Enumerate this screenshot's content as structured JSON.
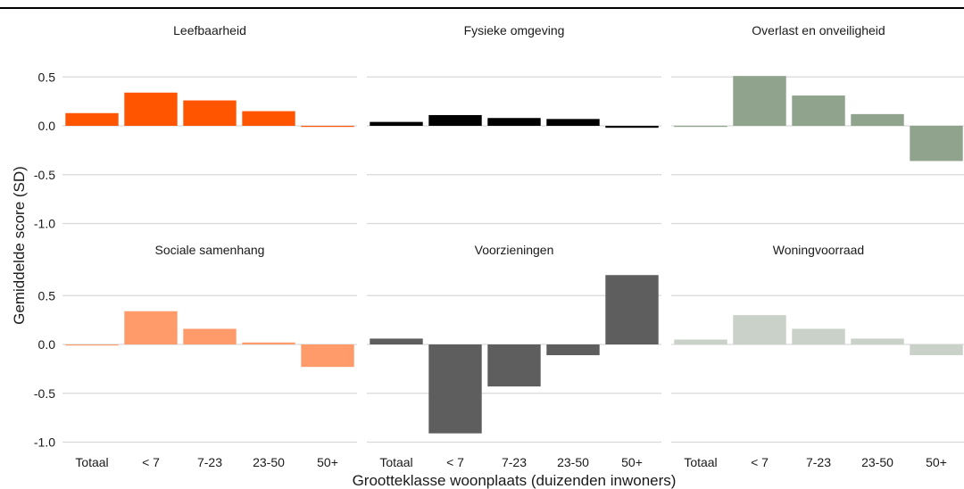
{
  "chart_data": {
    "type": "bar",
    "layout": "facet-grid 3x2",
    "xlabel": "Grootteklasse woonplaats (duizenden inwoners)",
    "ylabel": "Gemiddelde score (SD)",
    "categories": [
      "Totaal",
      "< 7",
      "7-23",
      "23-50",
      "50+"
    ],
    "ylim": [
      -1.05,
      0.6
    ],
    "yticks": [
      0.5,
      0.0,
      -0.5,
      -1.0
    ],
    "ytick_labels": [
      "0.5",
      "0.0",
      "-0.5",
      "-1.0"
    ],
    "grid": true,
    "panels": [
      {
        "title": "Leefbaarheid",
        "color": "#ff5500",
        "values": [
          0.13,
          0.34,
          0.26,
          0.15,
          -0.01
        ]
      },
      {
        "title": "Fysieke omgeving",
        "color": "#000000",
        "values": [
          0.04,
          0.11,
          0.08,
          0.07,
          -0.02
        ]
      },
      {
        "title": "Overlast en onveiligheid",
        "color": "#8fa38d",
        "values": [
          0.0,
          0.51,
          0.31,
          0.12,
          -0.36
        ]
      },
      {
        "title": "Sociale samenhang",
        "color": "#ff9b6b",
        "values": [
          -0.01,
          0.34,
          0.16,
          0.02,
          -0.23
        ]
      },
      {
        "title": "Voorzieningen",
        "color": "#5e5e5e",
        "values": [
          0.06,
          -0.91,
          -0.43,
          -0.11,
          0.71
        ]
      },
      {
        "title": "Woningvoorraad",
        "color": "#c9d1c8",
        "values": [
          0.05,
          0.3,
          0.16,
          0.06,
          -0.11
        ]
      }
    ]
  }
}
